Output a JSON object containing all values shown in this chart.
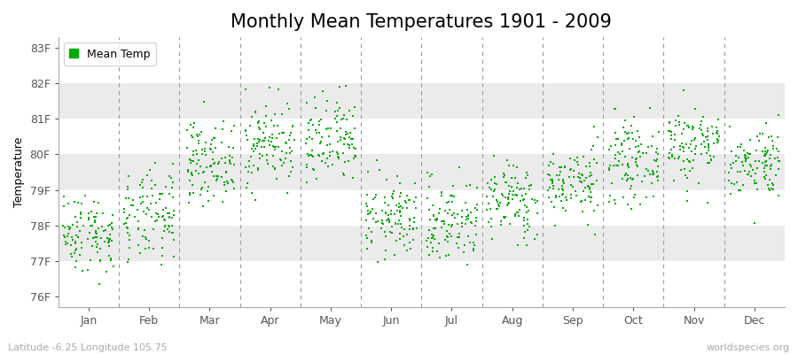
{
  "title": "Monthly Mean Temperatures 1901 - 2009",
  "ylabel": "Temperature",
  "xlabel_labels": [
    "Jan",
    "Feb",
    "Mar",
    "Apr",
    "May",
    "Jun",
    "Jul",
    "Aug",
    "Sep",
    "Oct",
    "Nov",
    "Dec"
  ],
  "ytick_labels": [
    "76F",
    "77F",
    "78F",
    "79F",
    "80F",
    "81F",
    "82F",
    "83F"
  ],
  "ytick_values": [
    76,
    77,
    78,
    79,
    80,
    81,
    82,
    83
  ],
  "ylim": [
    75.7,
    83.3
  ],
  "dot_color": "#00aa00",
  "dot_size": 3,
  "background_color": "#ffffff",
  "band_colors": [
    "#ffffff",
    "#ebebeb"
  ],
  "legend_label": "Mean Temp",
  "footer_left": "Latitude -6.25 Longitude 105.75",
  "footer_right": "worldspecies.org",
  "title_fontsize": 15,
  "axis_fontsize": 9,
  "footer_fontsize": 8,
  "month_means_f": [
    77.8,
    78.2,
    79.8,
    80.3,
    80.3,
    78.2,
    78.1,
    78.7,
    79.2,
    79.8,
    80.3,
    79.8
  ],
  "month_stds_f": [
    0.55,
    0.65,
    0.55,
    0.6,
    0.65,
    0.55,
    0.6,
    0.55,
    0.5,
    0.55,
    0.55,
    0.5
  ],
  "n_years": 109
}
